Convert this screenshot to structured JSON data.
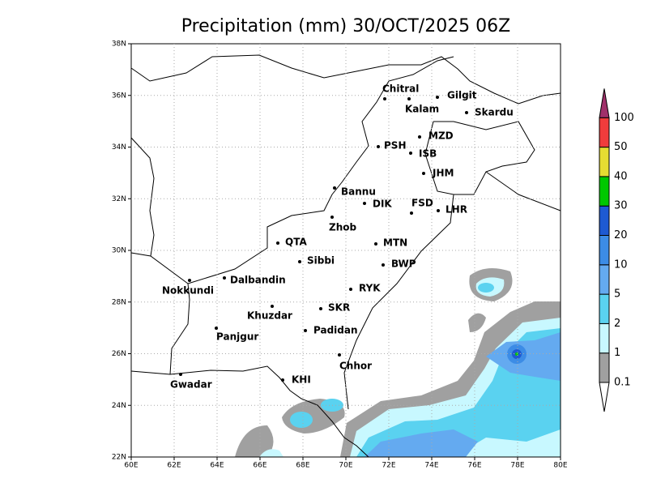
{
  "title": "Precipitation (mm) 30/OCT/2025 06Z",
  "x_labels": [
    "60E",
    "62E",
    "64E",
    "66E",
    "68E",
    "70E",
    "72E",
    "74E",
    "76E",
    "78E",
    "80E"
  ],
  "y_labels": [
    "22N",
    "24N",
    "26N",
    "28N",
    "30N",
    "32N",
    "34N",
    "36N",
    "38N"
  ],
  "cities": [
    "Chitral",
    "Kalam",
    "Gilgit",
    "Skardu",
    "MZD",
    "PSH",
    "ISB",
    "JHM",
    "Bannu",
    "DIK",
    "FSD",
    "LHR",
    "Zhob",
    "QTA",
    "MTN",
    "Sibbi",
    "BWP",
    "Dalbandin",
    "Nokkundi",
    "RYK",
    "Khuzdar",
    "SKR",
    "Panjgur",
    "Padidan",
    "Chhor",
    "KHI",
    "Gwadar"
  ],
  "colorbar": {
    "levels": [
      0.1,
      1,
      2,
      5,
      10,
      20,
      30,
      40,
      50,
      100
    ],
    "colors": [
      "#ffffff",
      "#a0a0a0",
      "#c8f8ff",
      "#5ad2f0",
      "#64aaf0",
      "#3c8ce6",
      "#1e5ad2",
      "#00c800",
      "#e6dc32",
      "#f03c3c",
      "#a0306a"
    ]
  }
}
